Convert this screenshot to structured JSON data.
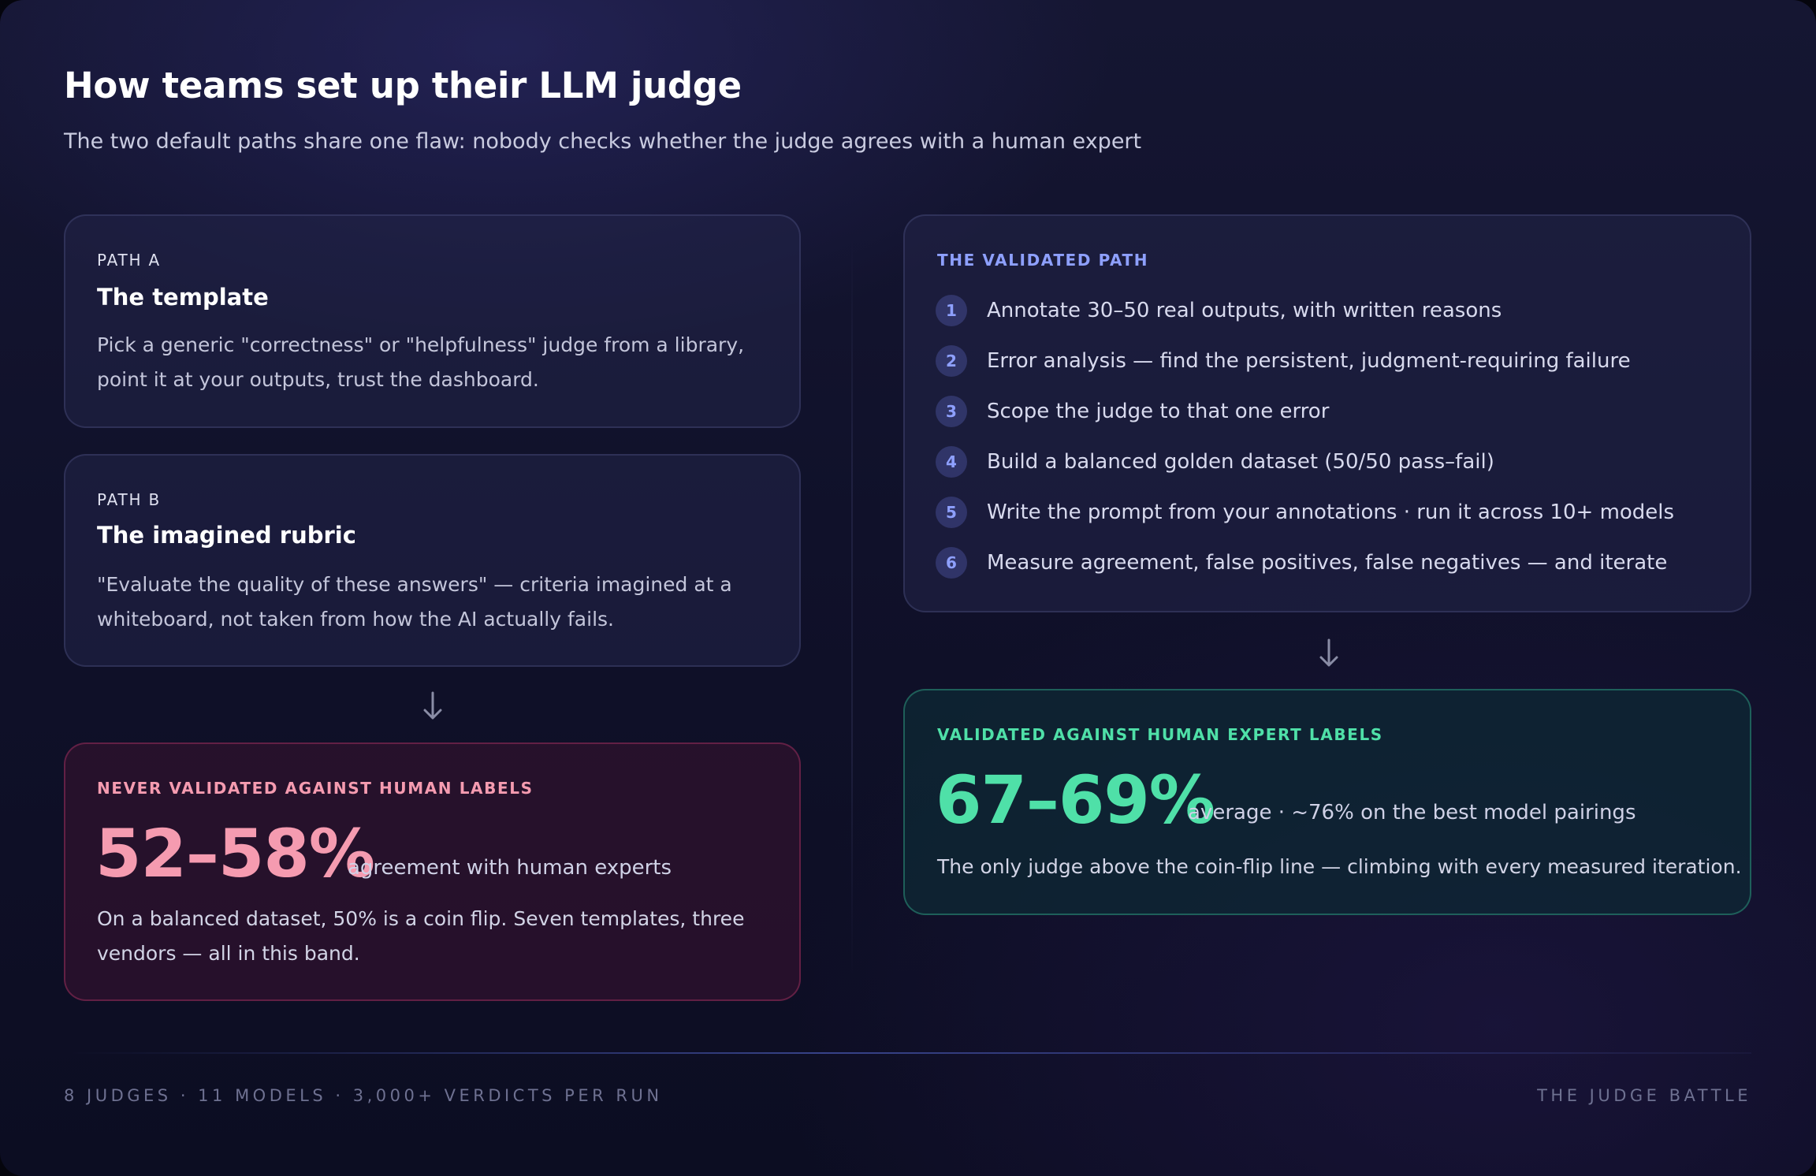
{
  "header": {
    "title": "How teams set up their LLM judge",
    "subtitle": "The two default paths share one flaw: nobody checks whether the judge agrees with a human expert"
  },
  "path_a": {
    "eyebrow": "PATH A",
    "title": "The template",
    "body": "Pick a generic \"correctness\" or \"helpfulness\" judge from a library, point it at your outputs, trust the dashboard."
  },
  "path_b": {
    "eyebrow": "PATH B",
    "title": "The imagined rubric",
    "body": "\"Evaluate the quality of these answers\" — criteria imagined at a whiteboard, not taken from how the AI actually fails."
  },
  "never_validated": {
    "eyebrow": "NEVER VALIDATED AGAINST HUMAN LABELS",
    "stat": "52–58%",
    "stat_caption": "agreement with human experts",
    "body": "On a balanced dataset, 50% is a coin flip. Seven templates, three vendors — all in this band."
  },
  "validated_path": {
    "eyebrow": "THE VALIDATED PATH",
    "steps": [
      {
        "num": "1",
        "text": "Annotate 30–50 real outputs, with written reasons"
      },
      {
        "num": "2",
        "text": "Error analysis — find the persistent, judgment-requiring failure"
      },
      {
        "num": "3",
        "text": "Scope the judge to that one error"
      },
      {
        "num": "4",
        "text": "Build a balanced golden dataset (50/50 pass–fail)"
      },
      {
        "num": "5",
        "text": "Write the prompt from your annotations · run it across 10+ models"
      },
      {
        "num": "6",
        "text": "Measure agreement, false positives, false negatives — and iterate"
      }
    ]
  },
  "validated": {
    "eyebrow": "VALIDATED AGAINST HUMAN EXPERT LABELS",
    "stat": "67–69%",
    "stat_caption": "average · ~76% on the best model pairings",
    "body": "The only judge above the coin-flip line — climbing with every measured iteration."
  },
  "footer": {
    "left": "8 JUDGES · 11 MODELS · 3,000+ VERDICTS PER RUN",
    "right": "THE JUDGE BATTLE"
  },
  "colors": {
    "accent_blue": "#8ea0ff",
    "fail_pink": "#f59bb0",
    "success_green": "#4fe0a8"
  },
  "icons": [
    "arrow-down-icon"
  ]
}
